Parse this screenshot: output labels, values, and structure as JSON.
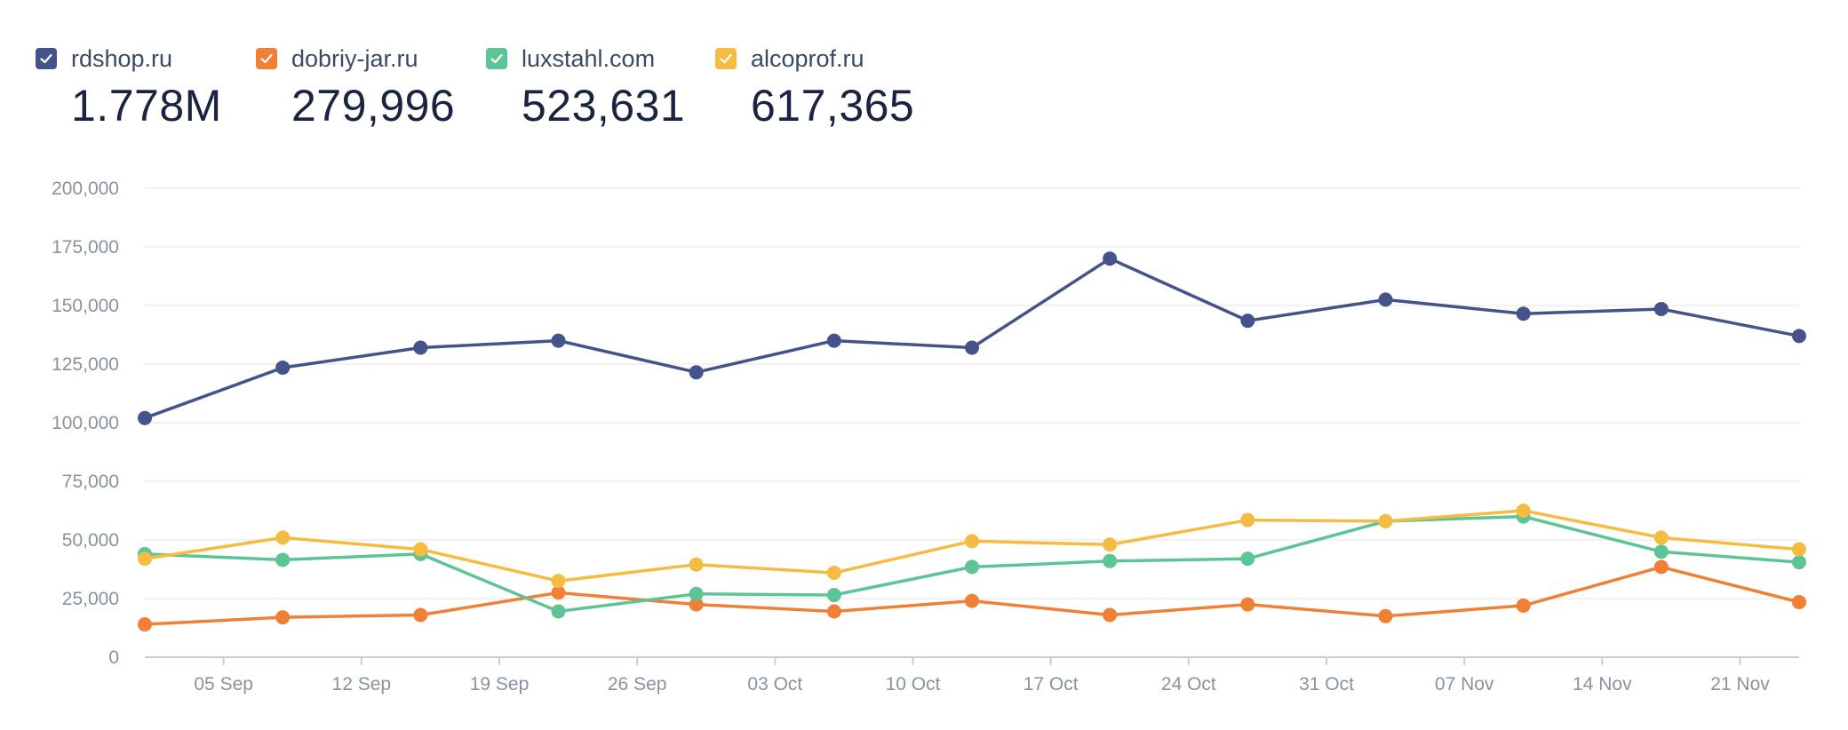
{
  "legend": [
    {
      "name": "rdshop.ru",
      "total": "1.778M",
      "color": "#44538a",
      "checked": true
    },
    {
      "name": "dobriy-jar.ru",
      "total": "279,996",
      "color": "#ef8036",
      "checked": true
    },
    {
      "name": "luxstahl.com",
      "total": "523,631",
      "color": "#5ec495",
      "checked": true
    },
    {
      "name": "alcoprof.ru",
      "total": "617,365",
      "color": "#f4bc42",
      "checked": true
    }
  ],
  "chart_data": {
    "type": "line",
    "title": "",
    "xlabel": "",
    "ylabel": "",
    "ylim": [
      0,
      200000
    ],
    "y_ticks": [
      "0",
      "25,000",
      "50,000",
      "75,000",
      "100,000",
      "125,000",
      "150,000",
      "175,000",
      "200,000"
    ],
    "x_tick_labels": [
      "05 Sep",
      "12 Sep",
      "19 Sep",
      "26 Sep",
      "03 Oct",
      "10 Oct",
      "17 Oct",
      "24 Oct",
      "31 Oct",
      "07 Nov",
      "14 Nov",
      "21 Nov"
    ],
    "x_ticks": [
      "2022-09-05",
      "2022-09-12",
      "2022-09-19",
      "2022-09-26",
      "2022-10-03",
      "2022-10-10",
      "2022-10-17",
      "2022-10-24",
      "2022-10-31",
      "2022-11-07",
      "2022-11-14",
      "2022-11-21"
    ],
    "x": [
      "2022-09-01",
      "2022-09-08",
      "2022-09-15",
      "2022-09-22",
      "2022-09-29",
      "2022-10-06",
      "2022-10-13",
      "2022-10-20",
      "2022-10-27",
      "2022-11-03",
      "2022-11-10",
      "2022-11-17",
      "2022-11-24"
    ],
    "grid": true,
    "series": [
      {
        "name": "rdshop.ru",
        "color": "#44538a",
        "values": [
          102000,
          123500,
          132000,
          135000,
          121500,
          135000,
          132000,
          170000,
          143500,
          152500,
          146500,
          148500,
          137000
        ]
      },
      {
        "name": "dobriy-jar.ru",
        "color": "#ef8036",
        "values": [
          14000,
          17000,
          18000,
          27500,
          22500,
          19500,
          24000,
          18000,
          22500,
          17500,
          22000,
          38500,
          23500
        ]
      },
      {
        "name": "luxstahl.com",
        "color": "#5ec495",
        "values": [
          44000,
          41500,
          44000,
          19500,
          27000,
          26500,
          38500,
          41000,
          42000,
          58000,
          60000,
          45000,
          40500
        ]
      },
      {
        "name": "alcoprof.ru",
        "color": "#f4bc42",
        "values": [
          42000,
          51000,
          46000,
          32500,
          39500,
          36000,
          49500,
          48000,
          58500,
          58000,
          62500,
          51000,
          46000
        ]
      }
    ]
  }
}
